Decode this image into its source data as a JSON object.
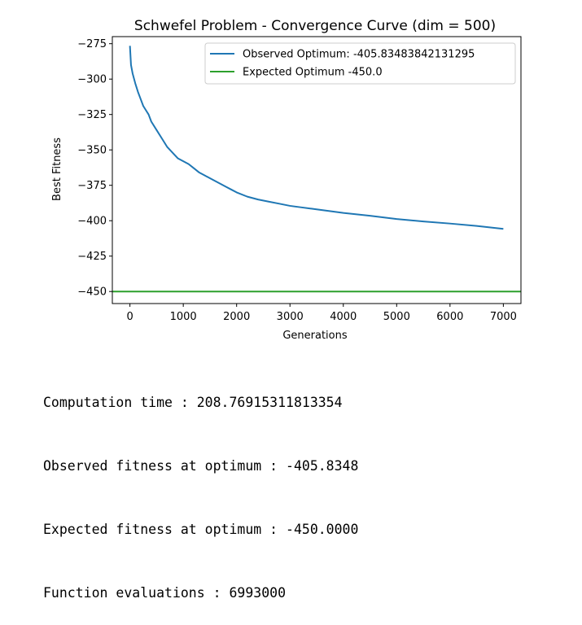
{
  "chart_data": {
    "type": "line",
    "title": "Schwefel Problem - Convergence Curve (dim = 500)",
    "xlabel": "Generations",
    "ylabel": "Best Fitness",
    "xlim": [
      -330,
      7330
    ],
    "ylim": [
      -458.5,
      -270
    ],
    "xticks": [
      0,
      1000,
      2000,
      3000,
      4000,
      5000,
      6000,
      7000
    ],
    "xtick_labels": [
      "0",
      "1000",
      "2000",
      "3000",
      "4000",
      "5000",
      "6000",
      "7000"
    ],
    "yticks": [
      -275,
      -300,
      -325,
      -350,
      -375,
      -400,
      -425,
      -450
    ],
    "ytick_labels": [
      "−275",
      "−300",
      "−325",
      "−350",
      "−375",
      "−400",
      "−425",
      "−450"
    ],
    "grid": false,
    "legend_position": "top-right",
    "series": [
      {
        "name": "Observed Optimum: -405.83483842131295",
        "color": "#1f77b4",
        "x": [
          0,
          20,
          50,
          100,
          150,
          200,
          250,
          300,
          350,
          400,
          500,
          600,
          700,
          800,
          900,
          1000,
          1100,
          1200,
          1300,
          1400,
          1500,
          1600,
          1700,
          1800,
          1900,
          2000,
          2200,
          2400,
          2600,
          2800,
          3000,
          3200,
          3400,
          3600,
          3800,
          4000,
          4500,
          5000,
          5500,
          6000,
          6500,
          7000
        ],
        "y": [
          -276.5,
          -290,
          -296,
          -303,
          -309,
          -314,
          -319,
          -322,
          -325,
          -330,
          -336,
          -342,
          -348,
          -352,
          -356,
          -358,
          -360,
          -363,
          -366,
          -368,
          -370,
          -372,
          -374,
          -376,
          -378,
          -380,
          -383,
          -385,
          -386.5,
          -388,
          -389.5,
          -390.5,
          -391.5,
          -392.5,
          -393.5,
          -394.5,
          -396.5,
          -398.8,
          -400.5,
          -402,
          -403.7,
          -405.8
        ]
      },
      {
        "name": "Expected Optimum -450.0",
        "color": "#2ca02c",
        "x": [
          -330,
          7330
        ],
        "y": [
          -450,
          -450
        ]
      }
    ]
  },
  "output": {
    "line1": "Computation time : 208.76915311813354",
    "line2": "Observed fitness at optimum : -405.8348",
    "line3": "Expected fitness at optimum : -450.0000",
    "line4": "Function evaluations : 6993000"
  }
}
